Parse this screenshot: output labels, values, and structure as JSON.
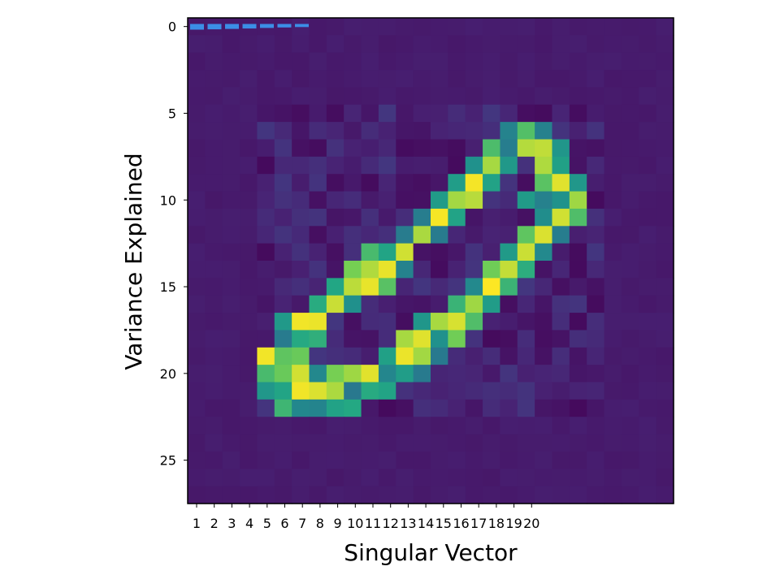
{
  "chart_data": {
    "type": "heatmap",
    "title": "",
    "xlabel": "Singular Vector",
    "ylabel": "Variance Explained",
    "image_grid": {
      "rows": 28,
      "cols": 28
    },
    "x_tick_labels": [
      "1",
      "2",
      "3",
      "4",
      "5",
      "6",
      "7",
      "8",
      "9",
      "10",
      "11",
      "12",
      "13",
      "14",
      "15",
      "16",
      "17",
      "18",
      "19",
      "20"
    ],
    "y_ticks": [
      0,
      5,
      10,
      15,
      20,
      25
    ],
    "grid": false,
    "legend": "none",
    "colormap": "viridis",
    "background_color": "#46196a",
    "variance_bars": {
      "color": "#3b8ee6",
      "row": 0,
      "values": [
        0.078,
        0.072,
        0.064,
        0.056,
        0.046,
        0.036,
        0.028
      ]
    },
    "pattern": {
      "description_free": true,
      "ring_cells": [
        [
          6,
          18
        ],
        [
          6,
          19
        ],
        [
          6,
          20
        ],
        [
          7,
          17
        ],
        [
          7,
          18
        ],
        [
          7,
          19
        ],
        [
          7,
          20
        ],
        [
          7,
          21
        ],
        [
          8,
          16
        ],
        [
          8,
          17
        ],
        [
          8,
          18
        ],
        [
          8,
          20
        ],
        [
          8,
          21
        ],
        [
          9,
          15
        ],
        [
          9,
          16
        ],
        [
          9,
          17
        ],
        [
          9,
          20
        ],
        [
          9,
          21
        ],
        [
          9,
          22
        ],
        [
          10,
          14
        ],
        [
          10,
          15
        ],
        [
          10,
          16
        ],
        [
          10,
          19
        ],
        [
          10,
          20
        ],
        [
          10,
          21
        ],
        [
          10,
          22
        ],
        [
          11,
          13
        ],
        [
          11,
          14
        ],
        [
          11,
          15
        ],
        [
          11,
          20
        ],
        [
          11,
          21
        ],
        [
          11,
          22
        ],
        [
          12,
          12
        ],
        [
          12,
          13
        ],
        [
          12,
          14
        ],
        [
          12,
          19
        ],
        [
          12,
          20
        ],
        [
          12,
          21
        ],
        [
          13,
          10
        ],
        [
          13,
          11
        ],
        [
          13,
          12
        ],
        [
          13,
          18
        ],
        [
          13,
          19
        ],
        [
          13,
          20
        ],
        [
          14,
          9
        ],
        [
          14,
          10
        ],
        [
          14,
          11
        ],
        [
          14,
          12
        ],
        [
          14,
          17
        ],
        [
          14,
          18
        ],
        [
          14,
          19
        ],
        [
          15,
          8
        ],
        [
          15,
          9
        ],
        [
          15,
          10
        ],
        [
          15,
          11
        ],
        [
          15,
          16
        ],
        [
          15,
          17
        ],
        [
          15,
          18
        ],
        [
          16,
          7
        ],
        [
          16,
          8
        ],
        [
          16,
          9
        ],
        [
          16,
          15
        ],
        [
          16,
          16
        ],
        [
          16,
          17
        ],
        [
          17,
          5
        ],
        [
          17,
          6
        ],
        [
          17,
          7
        ],
        [
          17,
          13
        ],
        [
          17,
          14
        ],
        [
          17,
          15
        ],
        [
          17,
          16
        ],
        [
          18,
          5
        ],
        [
          18,
          6
        ],
        [
          18,
          7
        ],
        [
          18,
          12
        ],
        [
          18,
          13
        ],
        [
          18,
          14
        ],
        [
          18,
          15
        ],
        [
          19,
          4
        ],
        [
          19,
          5
        ],
        [
          19,
          6
        ],
        [
          19,
          11
        ],
        [
          19,
          12
        ],
        [
          19,
          13
        ],
        [
          19,
          14
        ],
        [
          20,
          4
        ],
        [
          20,
          5
        ],
        [
          20,
          6
        ],
        [
          20,
          7
        ],
        [
          20,
          8
        ],
        [
          20,
          9
        ],
        [
          20,
          10
        ],
        [
          20,
          11
        ],
        [
          20,
          12
        ],
        [
          20,
          13
        ],
        [
          21,
          4
        ],
        [
          21,
          5
        ],
        [
          21,
          6
        ],
        [
          21,
          7
        ],
        [
          21,
          8
        ],
        [
          21,
          9
        ],
        [
          21,
          10
        ],
        [
          21,
          11
        ],
        [
          22,
          5
        ],
        [
          22,
          6
        ],
        [
          22,
          7
        ],
        [
          22,
          8
        ],
        [
          22,
          9
        ]
      ],
      "bright_cells": [
        [
          7,
          19
        ],
        [
          7,
          20
        ],
        [
          8,
          17
        ],
        [
          8,
          20
        ],
        [
          9,
          16
        ],
        [
          9,
          21
        ],
        [
          10,
          15
        ],
        [
          10,
          16
        ],
        [
          10,
          22
        ],
        [
          11,
          14
        ],
        [
          11,
          21
        ],
        [
          12,
          13
        ],
        [
          12,
          20
        ],
        [
          13,
          12
        ],
        [
          13,
          19
        ],
        [
          14,
          10
        ],
        [
          14,
          11
        ],
        [
          14,
          18
        ],
        [
          15,
          9
        ],
        [
          15,
          10
        ],
        [
          15,
          17
        ],
        [
          16,
          8
        ],
        [
          16,
          16
        ],
        [
          17,
          6
        ],
        [
          17,
          7
        ],
        [
          17,
          14
        ],
        [
          17,
          15
        ],
        [
          18,
          12
        ],
        [
          18,
          13
        ],
        [
          19,
          4
        ],
        [
          19,
          12
        ],
        [
          19,
          13
        ],
        [
          20,
          6
        ],
        [
          20,
          9
        ],
        [
          20,
          10
        ],
        [
          21,
          6
        ],
        [
          21,
          7
        ],
        [
          21,
          8
        ]
      ]
    }
  }
}
